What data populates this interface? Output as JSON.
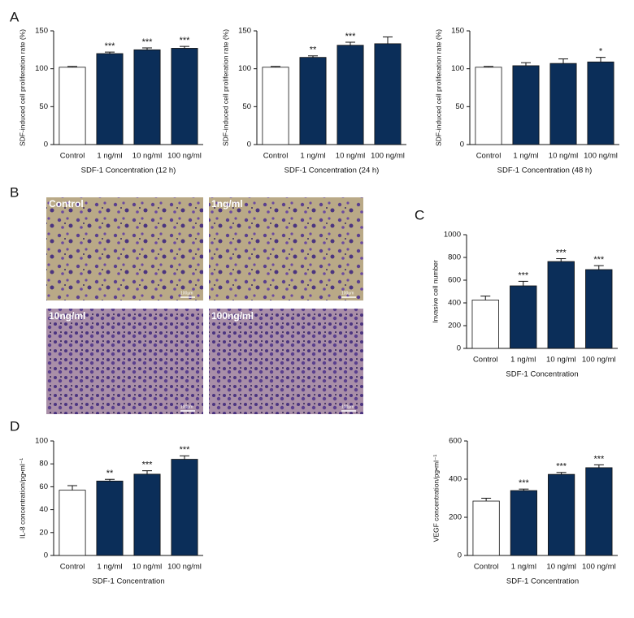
{
  "panels": [
    "A",
    "B",
    "C",
    "D"
  ],
  "micrographs": [
    {
      "label": "Control",
      "scale": "100μm"
    },
    {
      "label": "1ng/ml",
      "scale": "100μm"
    },
    {
      "label": "10ng/ml",
      "scale": "100μm"
    },
    {
      "label": "100ng/ml",
      "scale": "100μm"
    }
  ],
  "chart_data": [
    {
      "type": "bar",
      "ylabel": "SDF-induced cell proliferation rate (%)",
      "xlabel": "SDF-1 Concentration (12 h)",
      "categories": [
        "Control",
        "1 ng/ml",
        "10 ng/ml",
        "100 ng/ml"
      ],
      "values": [
        102,
        120,
        125,
        127
      ],
      "errors": [
        1,
        2,
        2.5,
        2.5
      ],
      "annotations": [
        null,
        "***",
        "***",
        "***"
      ],
      "colors": [
        "#ffffff",
        "#0b2e59",
        "#0b2e59",
        "#0b2e59"
      ],
      "ylim": [
        0,
        150
      ],
      "yticks": [
        0,
        50,
        100,
        150
      ]
    },
    {
      "type": "bar",
      "ylabel": "SDF-induced cell proliferation rate (%)",
      "xlabel": "SDF-1 Concentration (24 h)",
      "categories": [
        "Control",
        "1 ng/ml",
        "10 ng/ml",
        "100 ng/ml"
      ],
      "values": [
        102,
        115,
        131,
        133
      ],
      "errors": [
        1,
        2,
        4,
        9
      ],
      "annotations": [
        null,
        "**",
        "***",
        null
      ],
      "colors": [
        "#ffffff",
        "#0b2e59",
        "#0b2e59",
        "#0b2e59"
      ],
      "ylim": [
        0,
        150
      ],
      "yticks": [
        0,
        50,
        100,
        150
      ]
    },
    {
      "type": "bar",
      "ylabel": "SDF-induced cell proliferation rate (%)",
      "xlabel": "SDF-1 Concentration (48 h)",
      "categories": [
        "Control",
        "1 ng/ml",
        "10 ng/ml",
        "100 ng/ml"
      ],
      "values": [
        102,
        104,
        107,
        109
      ],
      "errors": [
        1,
        4,
        6,
        6
      ],
      "annotations": [
        null,
        null,
        null,
        "*"
      ],
      "colors": [
        "#ffffff",
        "#0b2e59",
        "#0b2e59",
        "#0b2e59"
      ],
      "ylim": [
        0,
        150
      ],
      "yticks": [
        0,
        50,
        100,
        150
      ]
    },
    {
      "type": "bar",
      "ylabel": "Invasive cell number",
      "xlabel": "SDF-1 Concentration",
      "categories": [
        "Control",
        "1 ng/ml",
        "10 ng/ml",
        "100 ng/ml"
      ],
      "values": [
        425,
        550,
        764,
        693
      ],
      "errors": [
        35,
        40,
        25,
        35
      ],
      "annotations": [
        null,
        "***",
        "***",
        "***"
      ],
      "colors": [
        "#ffffff",
        "#0b2e59",
        "#0b2e59",
        "#0b2e59"
      ],
      "ylim": [
        0,
        1000
      ],
      "yticks": [
        0,
        200,
        400,
        600,
        800,
        1000
      ]
    },
    {
      "type": "bar",
      "ylabel": "IL-8 concentration/pg•ml⁻¹",
      "xlabel": "SDF-1 Concentration",
      "categories": [
        "Control",
        "1 ng/ml",
        "10 ng/ml",
        "100 ng/ml"
      ],
      "values": [
        57,
        65,
        71,
        84
      ],
      "errors": [
        4,
        1.5,
        3,
        3
      ],
      "annotations": [
        null,
        "**",
        "***",
        "***"
      ],
      "colors": [
        "#ffffff",
        "#0b2e59",
        "#0b2e59",
        "#0b2e59"
      ],
      "ylim": [
        0,
        100
      ],
      "yticks": [
        0,
        20,
        40,
        60,
        80,
        100
      ]
    },
    {
      "type": "bar",
      "ylabel": "VEGF concentration/pg•ml⁻¹",
      "xlabel": "SDF-1 Concentration",
      "categories": [
        "Control",
        "1 ng/ml",
        "10 ng/ml",
        "100 ng/ml"
      ],
      "values": [
        285,
        340,
        425,
        460
      ],
      "errors": [
        15,
        8,
        10,
        15
      ],
      "annotations": [
        null,
        "***",
        "***",
        "***"
      ],
      "colors": [
        "#ffffff",
        "#0b2e59",
        "#0b2e59",
        "#0b2e59"
      ],
      "ylim": [
        0,
        600
      ],
      "yticks": [
        0,
        200,
        400,
        600
      ]
    }
  ]
}
